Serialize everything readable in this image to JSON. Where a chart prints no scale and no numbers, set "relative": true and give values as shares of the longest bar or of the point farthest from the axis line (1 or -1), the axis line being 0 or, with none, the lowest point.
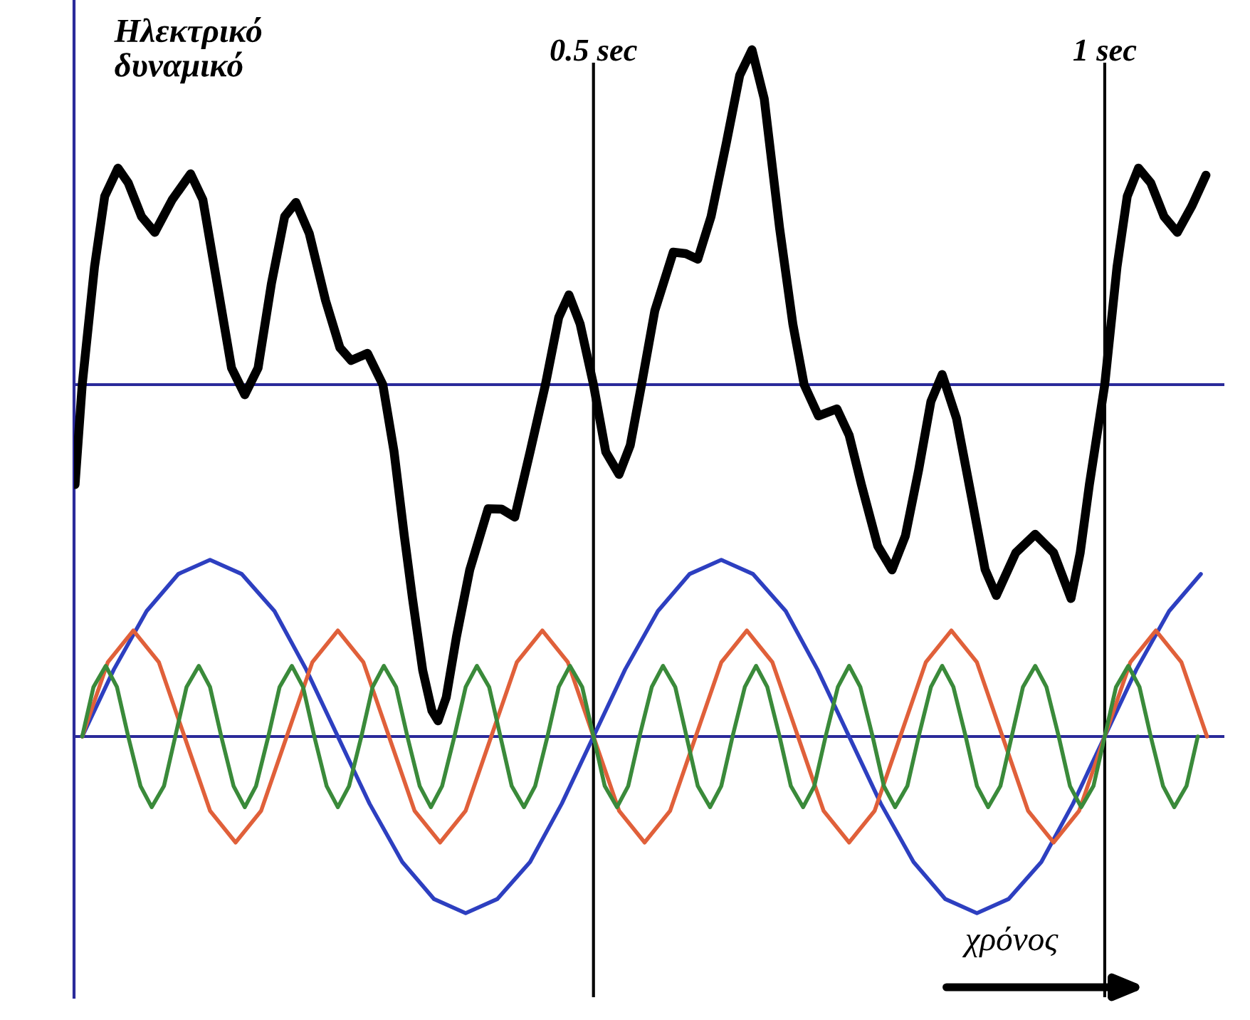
{
  "chart_data": [
    {
      "type": "line",
      "relative": true,
      "ylabel": "Ηλεκτρικό\nδυναμικό",
      "xlim": [
        -0.008,
        1.117
      ],
      "xticks": [
        {
          "value": 0.5,
          "label": "0.5 sec"
        },
        {
          "value": 1,
          "label": "1 sec"
        }
      ],
      "grid": "x",
      "tick_labels": "x",
      "ref_lines": [
        {
          "axis": "y",
          "value": 0,
          "color": "#2a2a9a"
        }
      ],
      "series": [
        {
          "color": "#000000",
          "x": [
            -0.007,
            0,
            0.012,
            0.022,
            0.035,
            0.045,
            0.058,
            0.071,
            0.088,
            0.106,
            0.118,
            0.132,
            0.146,
            0.159,
            0.172,
            0.185,
            0.198,
            0.209,
            0.222,
            0.238,
            0.252,
            0.263,
            0.279,
            0.294,
            0.305,
            0.315,
            0.323,
            0.333,
            0.342,
            0.348,
            0.356,
            0.366,
            0.379,
            0.397,
            0.41,
            0.423,
            0.438,
            0.453,
            0.466,
            0.476,
            0.487,
            0.5,
            0.512,
            0.525,
            0.536,
            0.547,
            0.56,
            0.578,
            0.59,
            0.602,
            0.615,
            0.63,
            0.643,
            0.655,
            0.667,
            0.682,
            0.695,
            0.706,
            0.72,
            0.738,
            0.75,
            0.762,
            0.778,
            0.792,
            0.805,
            0.818,
            0.83,
            0.841,
            0.855,
            0.87,
            0.883,
            0.894,
            0.913,
            0.932,
            0.95,
            0.967,
            0.976,
            0.985,
            1.0,
            1.012,
            1.022,
            1.033,
            1.045,
            1.058,
            1.071,
            1.085,
            1.099
          ],
          "values": [
            -0.297,
            0,
            0.35,
            0.56,
            0.644,
            0.6,
            0.5,
            0.453,
            0.55,
            0.627,
            0.55,
            0.3,
            0.05,
            -0.03,
            0.05,
            0.3,
            0.5,
            0.542,
            0.45,
            0.25,
            0.11,
            0.072,
            0.093,
            0,
            -0.2,
            -0.45,
            -0.636,
            -0.85,
            -0.97,
            -1.0,
            -0.93,
            -0.75,
            -0.551,
            -0.369,
            -0.37,
            -0.394,
            -0.2,
            0,
            0.2,
            0.267,
            0.18,
            0,
            -0.2,
            -0.267,
            -0.18,
            0,
            0.22,
            0.394,
            0.39,
            0.373,
            0.5,
            0.72,
            0.92,
            0.996,
            0.85,
            0.466,
            0.18,
            0,
            -0.093,
            -0.072,
            -0.15,
            -0.297,
            -0.48,
            -0.551,
            -0.45,
            -0.254,
            -0.05,
            0.03,
            -0.1,
            -0.339,
            -0.55,
            -0.627,
            -0.5,
            -0.445,
            -0.5,
            -0.636,
            -0.5,
            -0.297,
            0,
            0.35,
            0.56,
            0.644,
            0.6,
            0.5,
            0.453,
            0.53,
            0.623
          ]
        }
      ]
    },
    {
      "type": "line",
      "relative": true,
      "xlabel": "χρόνος",
      "xlim": [
        -0.008,
        1.117
      ],
      "tick_labels": false,
      "ref_lines": [
        {
          "axis": "y",
          "value": 0,
          "color": "#2a2a9a"
        }
      ],
      "series": [
        {
          "color": "#2d3fc0",
          "x": [
            0,
            0.031,
            0.063,
            0.094,
            0.125,
            0.156,
            0.188,
            0.219,
            0.25,
            0.281,
            0.313,
            0.344,
            0.375,
            0.406,
            0.438,
            0.469,
            0.5,
            0.531,
            0.563,
            0.594,
            0.625,
            0.656,
            0.688,
            0.719,
            0.75,
            0.781,
            0.813,
            0.844,
            0.875,
            0.906,
            0.938,
            0.969,
            1,
            1.031,
            1.063,
            1.094
          ],
          "values": [
            0,
            0.38,
            0.71,
            0.92,
            1,
            0.92,
            0.71,
            0.38,
            0,
            -0.38,
            -0.71,
            -0.92,
            -1,
            -0.92,
            -0.71,
            -0.38,
            0,
            0.38,
            0.71,
            0.92,
            1,
            0.92,
            0.71,
            0.38,
            0,
            -0.38,
            -0.71,
            -0.92,
            -1,
            -0.92,
            -0.71,
            -0.38,
            0,
            0.38,
            0.71,
            0.92
          ]
        },
        {
          "color": "#e0603a",
          "x": [
            0,
            0.025,
            0.05,
            0.075,
            0.1,
            0.125,
            0.15,
            0.175,
            0.2,
            0.225,
            0.25,
            0.275,
            0.3,
            0.325,
            0.35,
            0.375,
            0.4,
            0.425,
            0.45,
            0.475,
            0.5,
            0.525,
            0.55,
            0.575,
            0.6,
            0.625,
            0.65,
            0.675,
            0.7,
            0.725,
            0.75,
            0.775,
            0.8,
            0.825,
            0.85,
            0.875,
            0.9,
            0.925,
            0.95,
            0.975,
            1.0,
            1.025,
            1.05,
            1.075,
            1.1
          ],
          "values": [
            0,
            0.42,
            0.6,
            0.42,
            0,
            -0.42,
            -0.6,
            -0.42,
            0,
            0.42,
            0.6,
            0.42,
            0,
            -0.42,
            -0.6,
            -0.42,
            0,
            0.42,
            0.6,
            0.42,
            0,
            -0.42,
            -0.6,
            -0.42,
            0,
            0.42,
            0.6,
            0.42,
            0,
            -0.42,
            -0.6,
            -0.42,
            0,
            0.42,
            0.6,
            0.42,
            0,
            -0.42,
            -0.6,
            -0.42,
            0,
            0.42,
            0.6,
            0.42,
            0
          ]
        },
        {
          "color": "#3a8a3a",
          "x": [
            0,
            0.011,
            0.023,
            0.034,
            0.045,
            0.057,
            0.068,
            0.08,
            0.091,
            0.102,
            0.114,
            0.125,
            0.136,
            0.148,
            0.159,
            0.17,
            0.182,
            0.193,
            0.205,
            0.216,
            0.227,
            0.239,
            0.25,
            0.261,
            0.273,
            0.284,
            0.295,
            0.307,
            0.318,
            0.33,
            0.341,
            0.352,
            0.364,
            0.375,
            0.386,
            0.398,
            0.409,
            0.42,
            0.432,
            0.443,
            0.455,
            0.466,
            0.477,
            0.489,
            0.5,
            0.511,
            0.523,
            0.534,
            0.545,
            0.557,
            0.568,
            0.58,
            0.591,
            0.602,
            0.614,
            0.625,
            0.636,
            0.648,
            0.659,
            0.67,
            0.682,
            0.693,
            0.705,
            0.716,
            0.727,
            0.739,
            0.75,
            0.761,
            0.773,
            0.784,
            0.795,
            0.807,
            0.818,
            0.83,
            0.841,
            0.852,
            0.864,
            0.875,
            0.886,
            0.898,
            0.909,
            0.92,
            0.932,
            0.943,
            0.955,
            0.966,
            0.977,
            0.989,
            1.0,
            1.011,
            1.023,
            1.034,
            1.045,
            1.057,
            1.068,
            1.08,
            1.091
          ],
          "values": [
            0,
            0.28,
            0.4,
            0.28,
            0,
            -0.28,
            -0.4,
            -0.28,
            0,
            0.28,
            0.4,
            0.28,
            0,
            -0.28,
            -0.4,
            -0.28,
            0,
            0.28,
            0.4,
            0.28,
            0,
            -0.28,
            -0.4,
            -0.28,
            0,
            0.28,
            0.4,
            0.28,
            0,
            -0.28,
            -0.4,
            -0.28,
            0,
            0.28,
            0.4,
            0.28,
            0,
            -0.28,
            -0.4,
            -0.28,
            0,
            0.28,
            0.4,
            0.28,
            0,
            -0.28,
            -0.4,
            -0.28,
            0,
            0.28,
            0.4,
            0.28,
            0,
            -0.28,
            -0.4,
            -0.28,
            0,
            0.28,
            0.4,
            0.28,
            0,
            -0.28,
            -0.4,
            -0.28,
            0,
            0.28,
            0.4,
            0.28,
            0,
            -0.28,
            -0.4,
            -0.28,
            0,
            0.28,
            0.4,
            0.28,
            0,
            -0.28,
            -0.4,
            -0.28,
            0,
            0.28,
            0.4,
            0.28,
            0,
            -0.28,
            -0.4,
            -0.28,
            0,
            0.28,
            0.4,
            0.28,
            0,
            -0.28,
            -0.4,
            -0.28,
            0
          ]
        }
      ]
    }
  ]
}
